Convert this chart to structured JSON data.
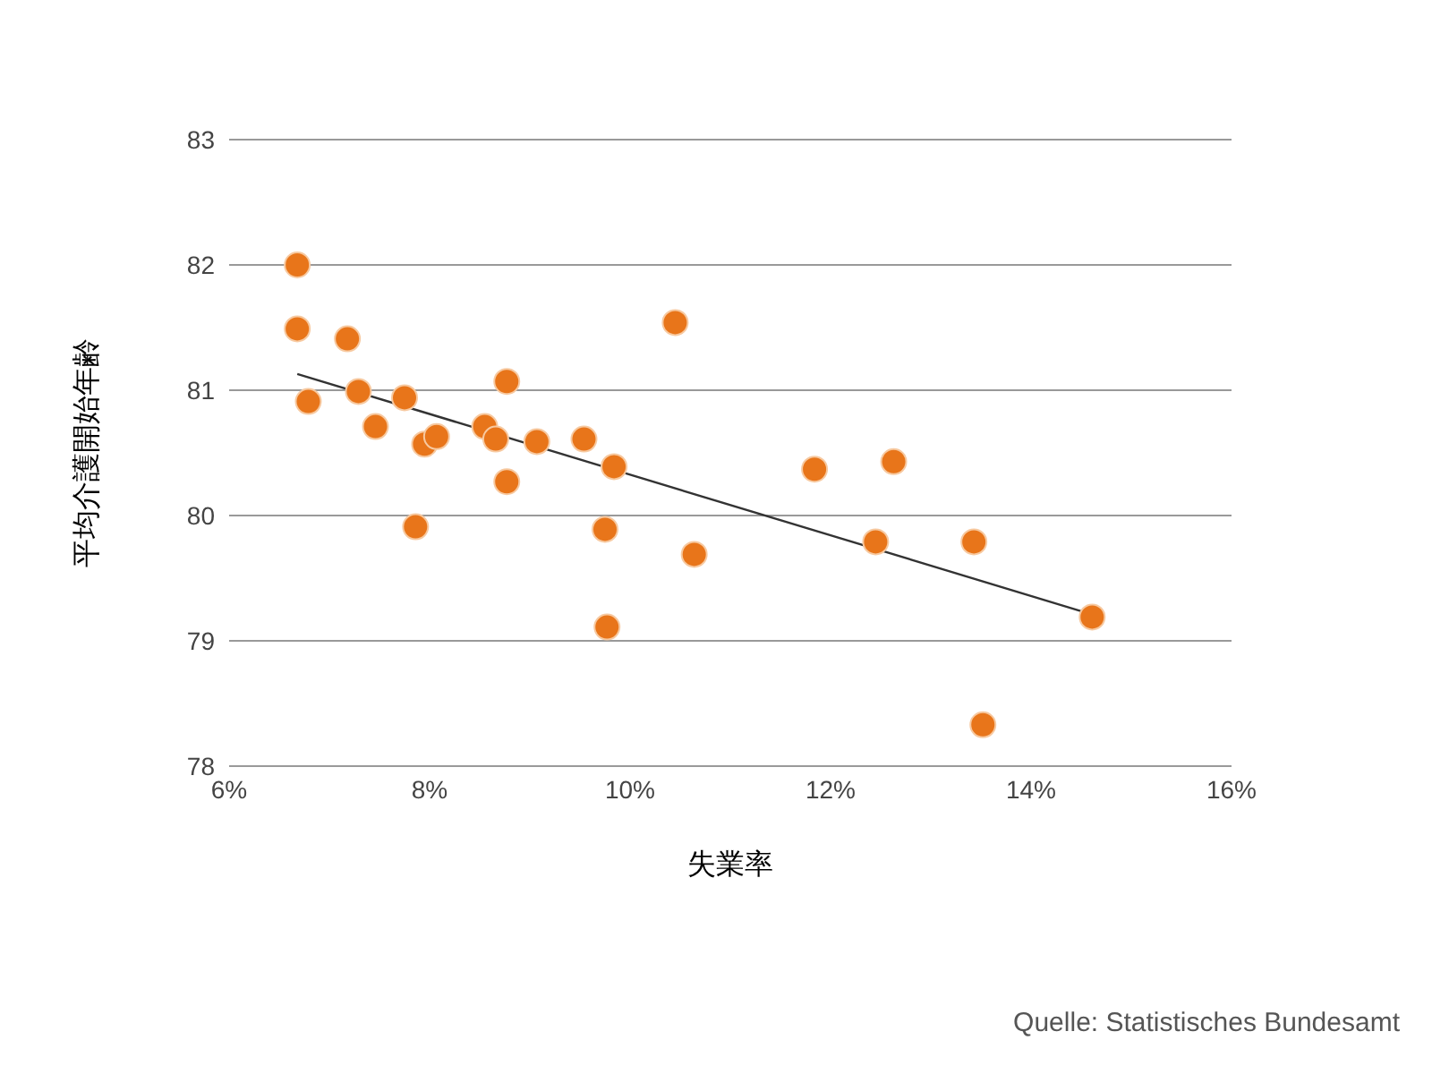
{
  "chart_data": {
    "type": "scatter",
    "xlabel": "失業率",
    "ylabel": "平均介護開始年齢",
    "annotations": [
      "Quelle: Statistisches Bundesamt"
    ],
    "xlim": [
      6,
      16
    ],
    "xticks": [
      {
        "value": 6,
        "label": "6%"
      },
      {
        "value": 8,
        "label": "8%"
      },
      {
        "value": 10,
        "label": "10%"
      },
      {
        "value": 12,
        "label": "12%"
      },
      {
        "value": 14,
        "label": "14%"
      },
      {
        "value": 16,
        "label": "16%"
      }
    ],
    "ylim": [
      78,
      83
    ],
    "yticks": [
      78,
      79,
      80,
      81,
      82,
      83
    ],
    "grid": "y",
    "series": [
      {
        "marker": "circle",
        "color": "#e8751a",
        "x": [
          6.68,
          6.68,
          7.18,
          6.79,
          7.29,
          7.46,
          7.75,
          7.95,
          8.07,
          7.86,
          8.55,
          8.66,
          8.77,
          8.77,
          9.07,
          9.54,
          9.84,
          9.75,
          9.77,
          10.45,
          10.64,
          11.84,
          12.63,
          12.45,
          13.43,
          13.52,
          14.61
        ],
        "values": [
          82.0,
          81.49,
          81.41,
          80.91,
          80.99,
          80.71,
          80.94,
          80.57,
          80.63,
          79.91,
          80.71,
          80.61,
          81.07,
          80.27,
          80.59,
          80.61,
          80.39,
          79.89,
          79.11,
          81.54,
          79.69,
          80.37,
          80.43,
          79.79,
          79.79,
          78.33,
          79.19
        ]
      },
      {
        "type": "line",
        "marker": "none",
        "color": "#333333",
        "x": [
          6.68,
          14.61
        ],
        "values": [
          81.13,
          79.21
        ]
      }
    ]
  }
}
